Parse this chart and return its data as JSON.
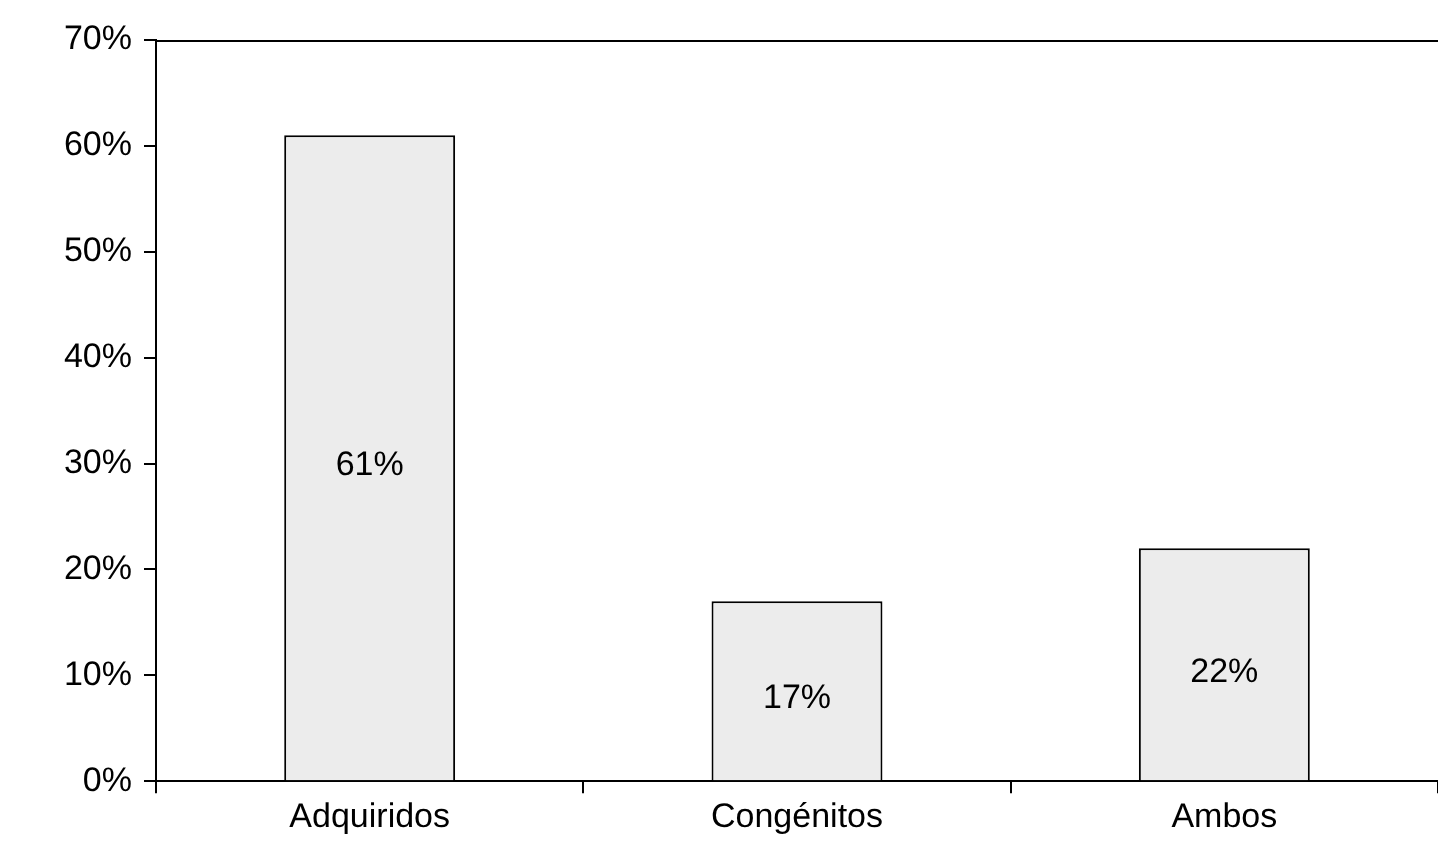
{
  "chart_data": {
    "type": "bar",
    "categories": [
      "Adquiridos",
      "Congénitos",
      "Ambos"
    ],
    "values": [
      61,
      17,
      22
    ],
    "color": "#ececec",
    "value_labels": [
      "61%",
      "17%",
      "22%"
    ],
    "ylim": [
      0,
      70
    ],
    "yticks": [
      {
        "value": 0,
        "label": "0%"
      },
      {
        "value": 10,
        "label": "10%"
      },
      {
        "value": 20,
        "label": "20%"
      },
      {
        "value": 30,
        "label": "30%"
      },
      {
        "value": 40,
        "label": "40%"
      },
      {
        "value": 50,
        "label": "50%"
      },
      {
        "value": 60,
        "label": "60%"
      },
      {
        "value": 70,
        "label": "70%"
      }
    ],
    "grid": false,
    "legend": false
  }
}
